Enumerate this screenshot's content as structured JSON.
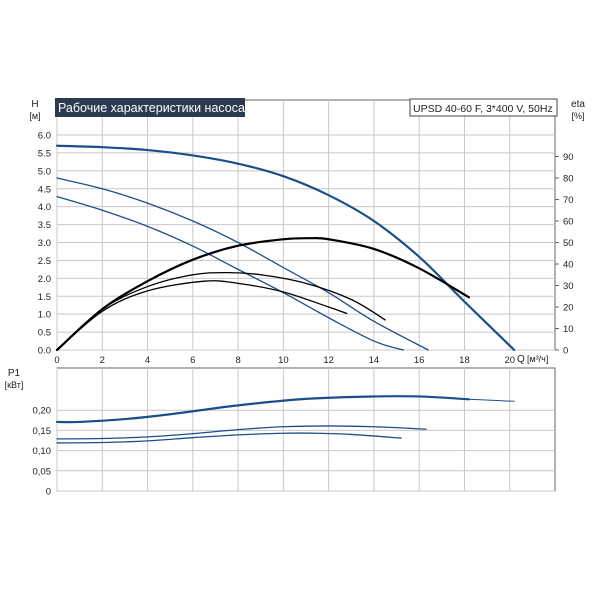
{
  "title": "Рабочие характеристики насоса",
  "model": "UPSD 40-60 F, 3*400 V, 50Hz",
  "colors": {
    "title_bg": "#2b3a4f",
    "blue": "#1d4e8a",
    "black": "#000000",
    "grid": "#c8c8c8"
  },
  "chart_data": [
    {
      "type": "line",
      "panel": "head",
      "ylabel": "H",
      "yunit": "[м]",
      "y2label": "eta",
      "y2unit": "[%]",
      "xlabel": "Q",
      "xunit": "[м³/ч]",
      "xlim": [
        0,
        22
      ],
      "ylim": [
        0,
        6.0
      ],
      "y2lim": [
        0,
        100
      ],
      "x_ticks": [
        0,
        2,
        4,
        6,
        8,
        10,
        12,
        14,
        16,
        18,
        20
      ],
      "y_ticks": [
        "0.0",
        "0.5",
        "1.0",
        "1.5",
        "2.0",
        "2.5",
        "3.0",
        "3.5",
        "4.0",
        "4.5",
        "5.0",
        "5.5",
        "6.0"
      ],
      "y2_ticks": [
        0,
        10,
        20,
        30,
        40,
        50,
        60,
        70,
        80,
        90
      ],
      "grid": true,
      "series": [
        {
          "kind": "head",
          "color": "blue",
          "width": 2.2,
          "x": [
            0,
            2,
            4,
            6,
            8,
            10,
            12,
            14,
            16,
            18,
            20.2
          ],
          "y": [
            5.7,
            5.66,
            5.58,
            5.43,
            5.2,
            4.85,
            4.32,
            3.6,
            2.6,
            1.35,
            0.0
          ]
        },
        {
          "kind": "head",
          "color": "blue",
          "width": 1.3,
          "x": [
            0,
            2,
            4,
            6,
            8,
            10,
            12,
            14,
            16.4
          ],
          "y": [
            4.8,
            4.5,
            4.1,
            3.6,
            3.0,
            2.3,
            1.6,
            0.8,
            0.0
          ]
        },
        {
          "kind": "head",
          "color": "blue",
          "width": 1.3,
          "x": [
            0,
            2,
            4,
            6,
            8,
            10,
            12,
            14,
            15.3
          ],
          "y": [
            4.28,
            3.9,
            3.45,
            2.9,
            2.25,
            1.6,
            0.9,
            0.25,
            0.0
          ]
        },
        {
          "kind": "eta",
          "color": "black",
          "width": 2.2,
          "x": [
            0,
            2,
            4,
            6,
            8,
            10,
            11.2,
            12,
            14,
            16,
            18.2
          ],
          "y": [
            0,
            19,
            32,
            42,
            48.5,
            51.5,
            52,
            51.5,
            47,
            38,
            24.5
          ]
        },
        {
          "kind": "eta",
          "color": "black",
          "width": 1.3,
          "x": [
            0,
            2,
            4,
            6,
            7.5,
            9,
            11,
            13,
            14.5
          ],
          "y": [
            0,
            19,
            29.5,
            35,
            36,
            35,
            31,
            23.5,
            14
          ]
        },
        {
          "kind": "eta",
          "color": "black",
          "width": 1.3,
          "x": [
            0,
            2,
            4,
            6.5,
            8,
            10,
            12,
            12.8
          ],
          "y": [
            0,
            18,
            27.5,
            32,
            31,
            27,
            20,
            17
          ]
        }
      ]
    },
    {
      "type": "line",
      "panel": "power",
      "ylabel": "P1",
      "yunit": "[кВт]",
      "xlim": [
        0,
        22
      ],
      "ylim": [
        0,
        0.25
      ],
      "y_ticks": [
        "0",
        "0,05",
        "0,10",
        "0,15",
        "0,20"
      ],
      "grid": true,
      "series": [
        {
          "color": "blue",
          "width": 2.2,
          "x": [
            0,
            1,
            3,
            5,
            8,
            11,
            14,
            16,
            18.2
          ],
          "y": [
            0.171,
            0.171,
            0.178,
            0.19,
            0.212,
            0.228,
            0.234,
            0.234,
            0.227
          ]
        },
        {
          "color": "blue",
          "width": 1.0,
          "x": [
            18.2,
            20.2
          ],
          "y": [
            0.227,
            0.222
          ]
        },
        {
          "color": "blue",
          "width": 1.3,
          "x": [
            0,
            2,
            4,
            6,
            8,
            10,
            12,
            14,
            16.3
          ],
          "y": [
            0.129,
            0.13,
            0.134,
            0.142,
            0.152,
            0.159,
            0.161,
            0.159,
            0.153
          ]
        },
        {
          "color": "blue",
          "width": 1.3,
          "x": [
            0,
            2,
            4,
            6,
            8,
            10,
            11.5,
            13,
            15.2
          ],
          "y": [
            0.119,
            0.12,
            0.124,
            0.132,
            0.139,
            0.143,
            0.143,
            0.14,
            0.131
          ]
        }
      ]
    }
  ]
}
